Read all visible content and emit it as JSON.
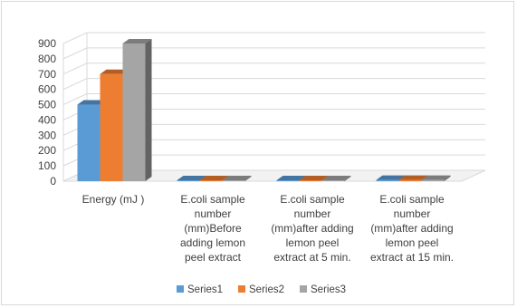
{
  "chart_data": {
    "type": "bar",
    "categories": [
      "Energy (mJ )",
      "E.coli sample number (mm)Before adding lemon peel extract",
      "E.coli sample number (mm)after adding lemon peel extract at 5 min.",
      "E.coli sample number (mm)after adding lemon peel extract at 15 min."
    ],
    "category_lines": [
      [
        "Energy (mJ )"
      ],
      [
        "E.coli sample",
        "number",
        "(mm)Before",
        "adding lemon",
        "peel extract"
      ],
      [
        "E.coli sample",
        "number",
        "(mm)after adding",
        "lemon peel",
        "extract at 5 min."
      ],
      [
        "E.coli sample",
        "number",
        "(mm)after adding",
        "lemon peel",
        "extract at 15 min."
      ]
    ],
    "series": [
      {
        "name": "Series1",
        "values": [
          500,
          6,
          6,
          8
        ],
        "color": "#5b9bd5"
      },
      {
        "name": "Series2",
        "values": [
          700,
          6,
          6,
          8
        ],
        "color": "#ed7d31"
      },
      {
        "name": "Series3",
        "values": [
          900,
          6,
          6,
          8
        ],
        "color": "#a5a5a5"
      }
    ],
    "y_ticks": [
      0,
      100,
      200,
      300,
      400,
      500,
      600,
      700,
      800,
      900
    ],
    "ylim": [
      0,
      900
    ],
    "grid": true,
    "legend_position": "bottom",
    "title": "",
    "xlabel": "",
    "ylabel": ""
  }
}
